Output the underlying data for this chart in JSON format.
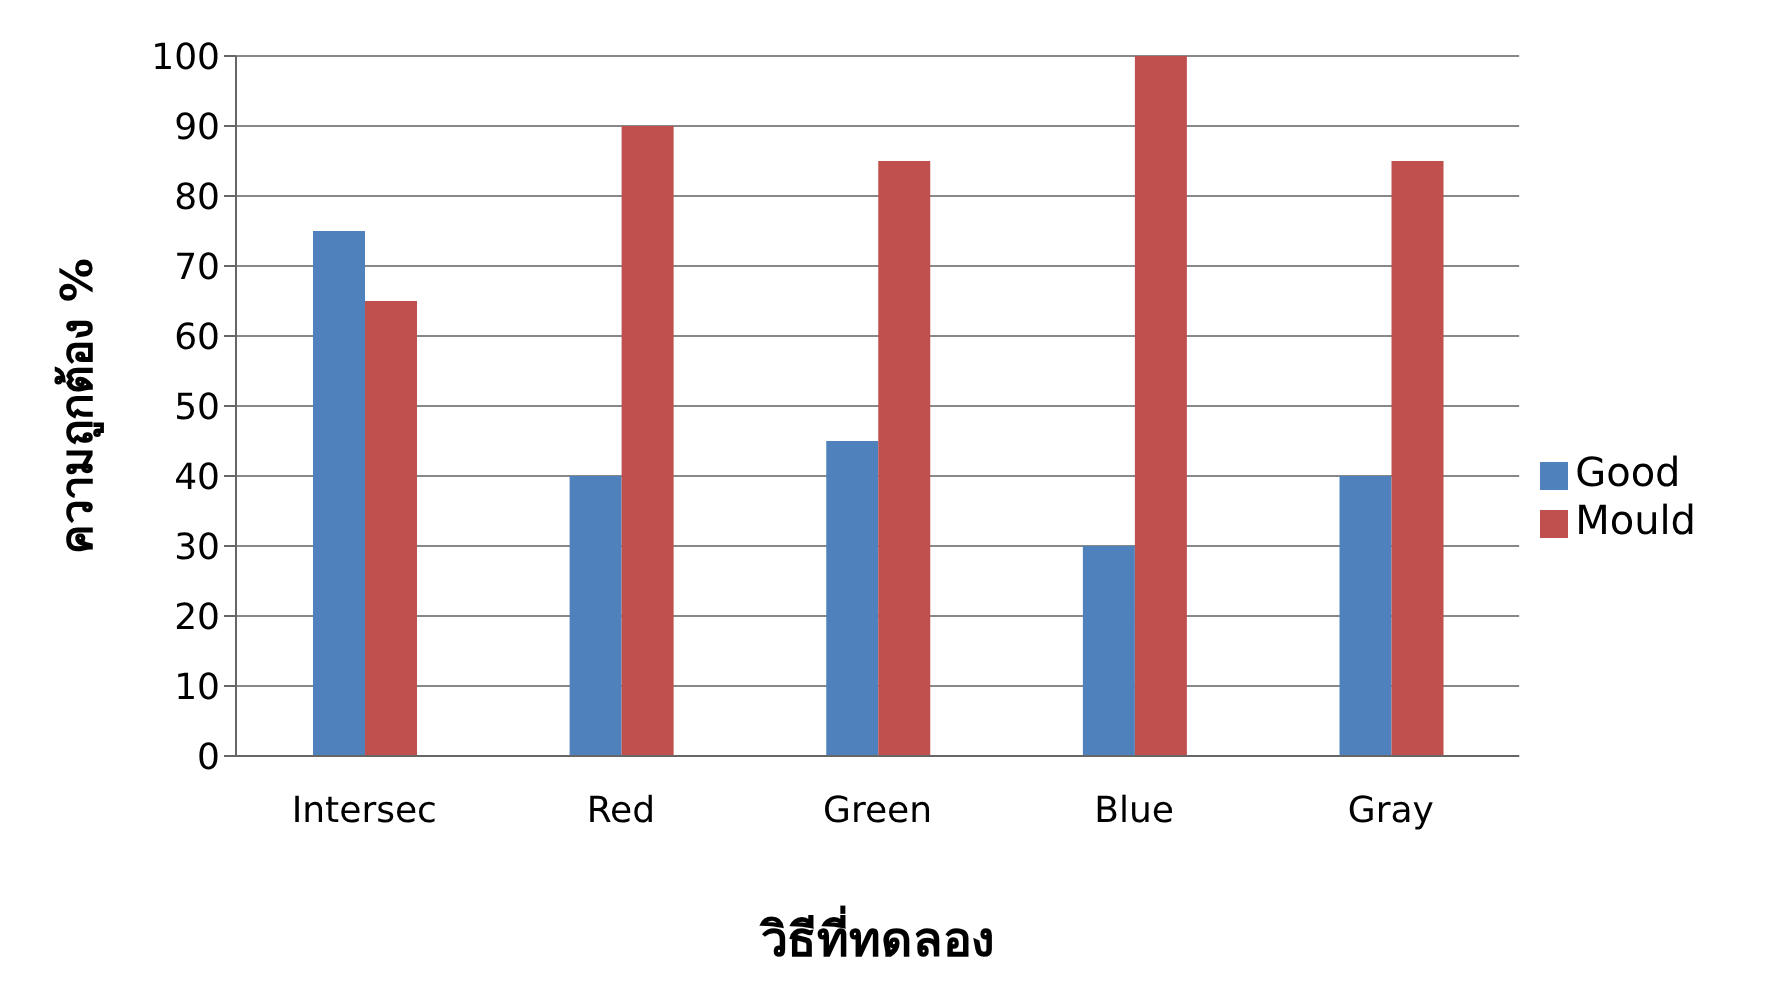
{
  "chart_data": {
    "type": "bar",
    "xlabel": "วิธีที่ทดลอง",
    "ylabel": "ความถูกต้อง %",
    "categories": [
      "Intersec",
      "Red",
      "Green",
      "Blue",
      "Gray"
    ],
    "series": [
      {
        "name": "Good",
        "color": "#4f81bd",
        "values": [
          75,
          40,
          45,
          30,
          40
        ]
      },
      {
        "name": "Mould",
        "color": "#c0504d",
        "values": [
          65,
          90,
          85,
          100,
          85
        ]
      }
    ],
    "ylim": [
      0,
      100
    ],
    "yticks": [
      0,
      10,
      20,
      30,
      40,
      50,
      60,
      70,
      80,
      90,
      100
    ],
    "grid": "y",
    "legend": "right"
  }
}
